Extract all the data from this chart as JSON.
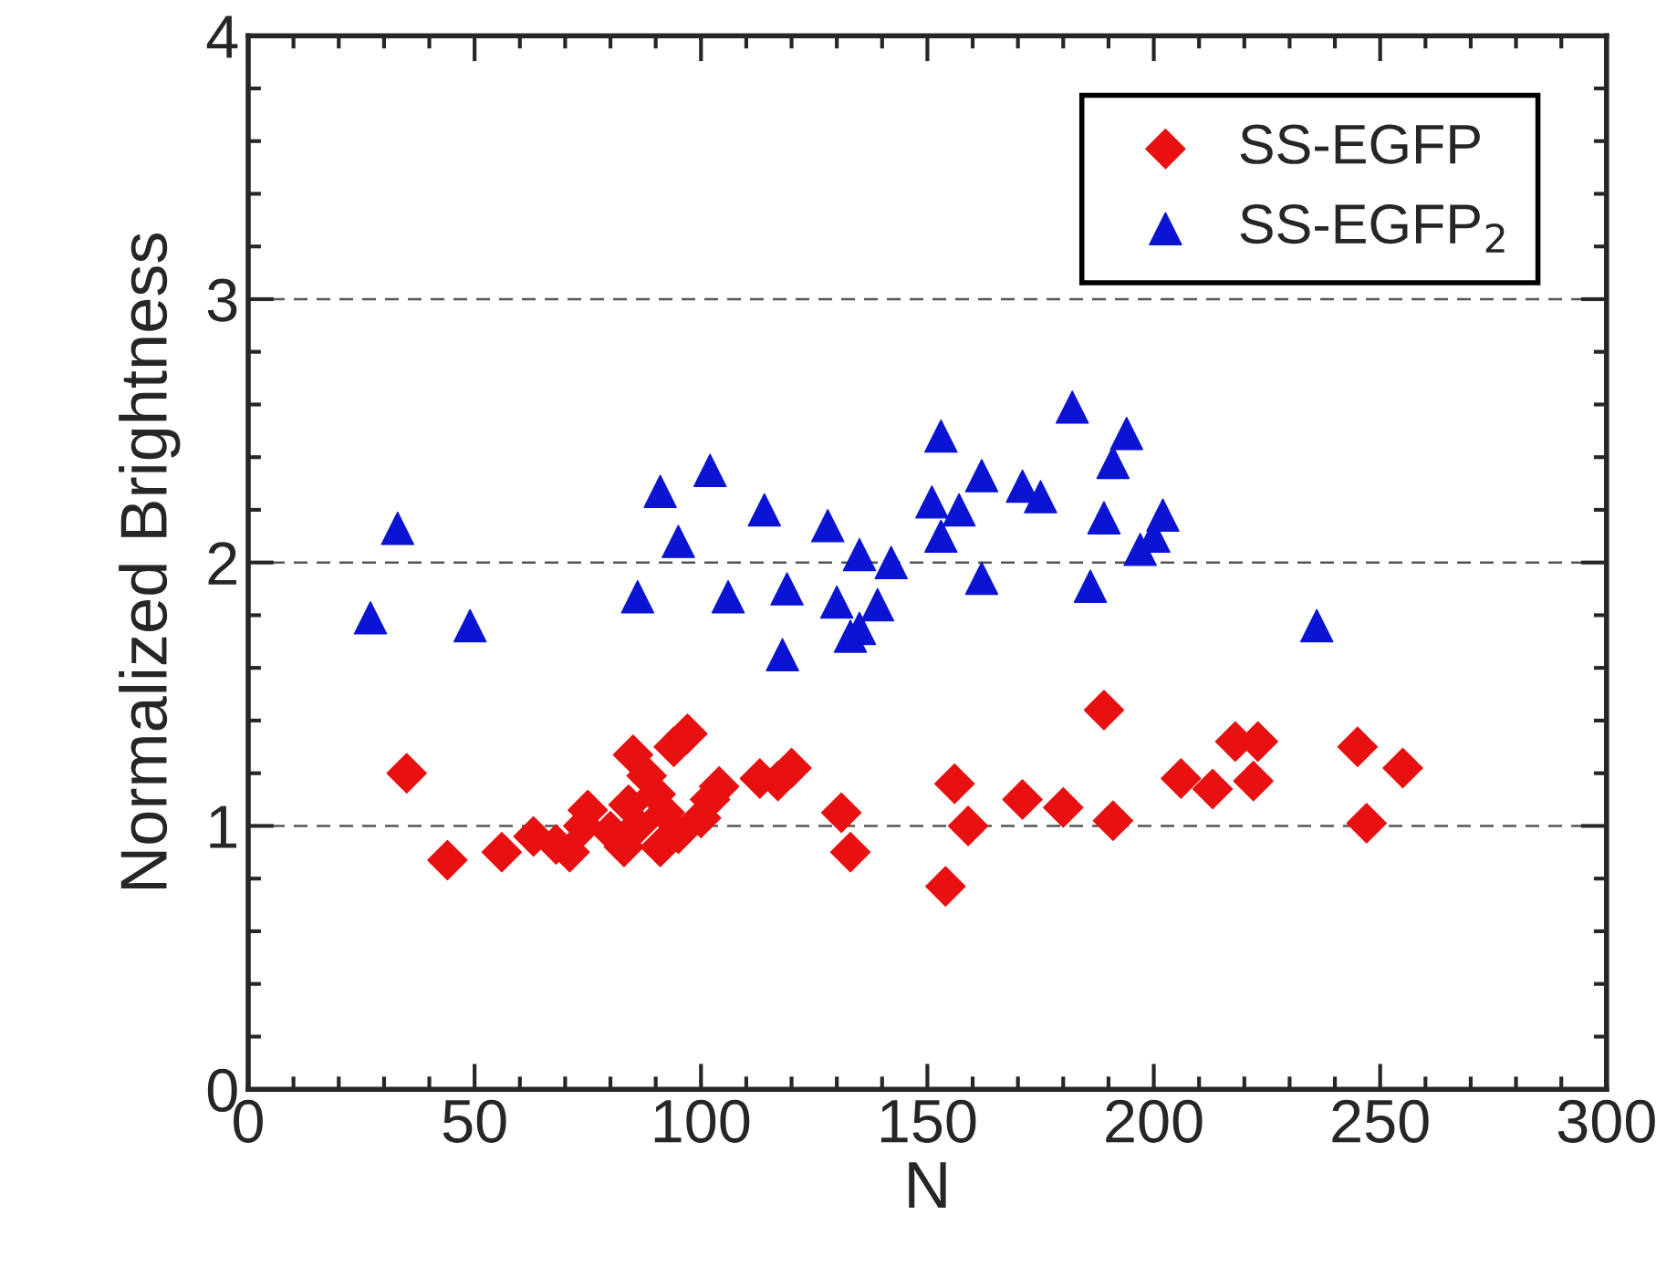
{
  "chart_data": {
    "type": "scatter",
    "xlabel": "N",
    "ylabel": "Normalized Brightness",
    "xlim": [
      0,
      300
    ],
    "ylim": [
      0,
      4
    ],
    "xticks": [
      0,
      50,
      100,
      150,
      200,
      250,
      300
    ],
    "yticks": [
      0,
      1,
      2,
      3,
      4
    ],
    "grid": "y",
    "legend": "top right",
    "series": [
      {
        "name": "SS-EGFP",
        "color": "#e81010",
        "marker": "diamond",
        "x": [
          35,
          44,
          54,
          56,
          63,
          68,
          71,
          74,
          75,
          80,
          83,
          84,
          85,
          86,
          88,
          90,
          91,
          92,
          94,
          95,
          97,
          98,
          100,
          102,
          104,
          113,
          117,
          120,
          131,
          133,
          154,
          156,
          159,
          171,
          180,
          189,
          191,
          206,
          213,
          218,
          222,
          223,
          245,
          247,
          255
        ],
        "values": [
          1.2,
          0.87,
          null,
          0.9,
          0.96,
          0.93,
          0.9,
          1.0,
          1.06,
          0.98,
          0.92,
          1.08,
          1.27,
          1.0,
          1.19,
          1.12,
          0.92,
          1.05,
          1.3,
          0.97,
          1.35,
          null,
          1.03,
          1.1,
          1.15,
          1.18,
          1.17,
          1.22,
          1.05,
          0.9,
          0.77,
          1.16,
          1.0,
          1.1,
          1.07,
          1.44,
          1.02,
          1.18,
          1.14,
          1.32,
          1.17,
          1.32,
          1.3,
          1.01,
          1.22
        ]
      },
      {
        "name": "SS-EGFP$_{2}$",
        "color": "#0a14d2",
        "marker": "triangle",
        "x": [
          27,
          33,
          49,
          86,
          91,
          95,
          102,
          106,
          114,
          118,
          119,
          128,
          130,
          133,
          135,
          135,
          139,
          142,
          151,
          153,
          153,
          155,
          157,
          162,
          162,
          171,
          175,
          182,
          186,
          189,
          191,
          194,
          197,
          200,
          202,
          236
        ],
        "values": [
          1.79,
          2.13,
          1.76,
          1.87,
          2.27,
          2.08,
          2.35,
          1.87,
          2.2,
          1.65,
          1.9,
          2.14,
          1.85,
          1.72,
          2.03,
          1.75,
          1.84,
          2.0,
          2.23,
          2.48,
          2.1,
          null,
          2.2,
          2.33,
          1.94,
          2.29,
          2.25,
          2.59,
          1.91,
          2.17,
          2.38,
          2.49,
          2.05,
          2.1,
          2.18,
          1.76
        ]
      }
    ]
  }
}
